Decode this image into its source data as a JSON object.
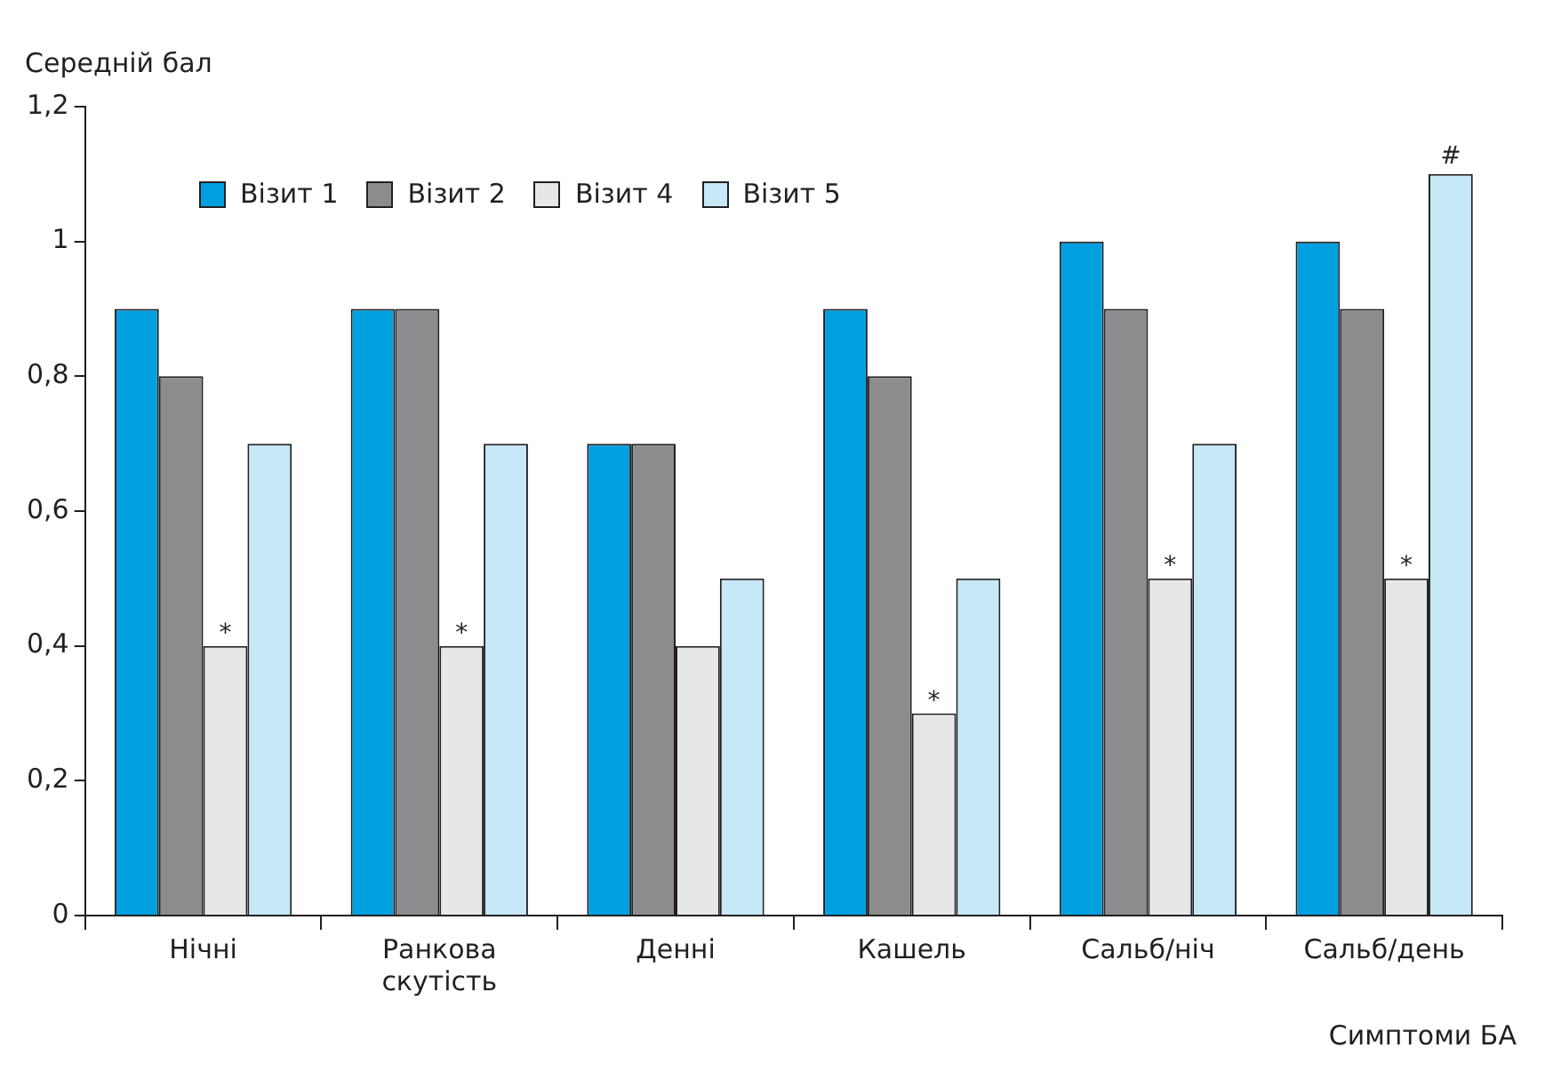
{
  "chart_data": {
    "type": "bar",
    "ylabel": "Середній бал",
    "xlabel": "Симптоми БА",
    "categories": [
      "Нічні",
      "Ранкова скутість",
      "Денні",
      "Кашель",
      "Сальб/ніч",
      "Сальб/день"
    ],
    "series": [
      {
        "name": "Візит 1",
        "color": "#00a0e0",
        "values": [
          0.9,
          0.9,
          0.7,
          0.9,
          1.0,
          1.0
        ]
      },
      {
        "name": "Візит 2",
        "color": "#8c8c8e",
        "values": [
          0.8,
          0.9,
          0.7,
          0.8,
          0.9,
          0.9
        ]
      },
      {
        "name": "Візит 4",
        "color": "#e6e7e8",
        "values": [
          0.4,
          0.4,
          0.4,
          0.3,
          0.5,
          0.5
        ]
      },
      {
        "name": "Візит 5",
        "color": "#c6e8f7",
        "values": [
          0.7,
          0.7,
          0.5,
          0.5,
          0.7,
          1.1
        ]
      }
    ],
    "ylim": [
      0,
      1.2
    ],
    "yticks": [
      0,
      {
        "value": 0.2,
        "label": "0,2"
      },
      {
        "value": 0.4,
        "label": "0,4"
      },
      {
        "value": 0.6,
        "label": "0,6"
      },
      {
        "value": 0.8,
        "label": "0,8"
      },
      1,
      {
        "value": 1.2,
        "label": "1,2"
      }
    ],
    "grid": false,
    "legend": "top left",
    "annotations": [
      {
        "text": "*",
        "x": "Нічні",
        "y": 0.4
      },
      {
        "text": "*",
        "x": "Ранкова скутість",
        "y": 0.4
      },
      {
        "text": "*",
        "x": "Кашель",
        "y": 0.3
      },
      {
        "text": "*",
        "x": "Сальб/ніч",
        "y": 0.5
      },
      {
        "text": "*",
        "x": "Сальб/день",
        "y": 0.5
      },
      "#"
    ]
  }
}
